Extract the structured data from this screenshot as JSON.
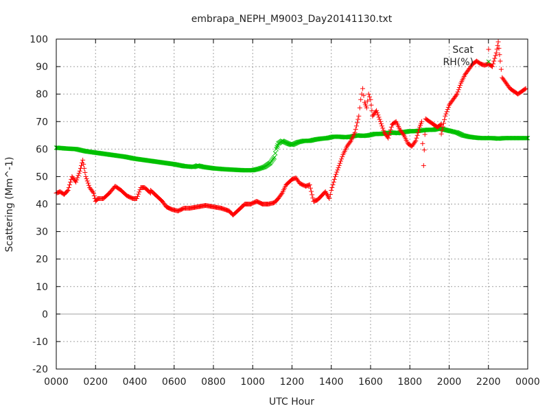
{
  "chart_data": {
    "type": "scatter",
    "title": "embrapa_NEPH_M9003_Day20141130.txt",
    "xlabel": "UTC Hour",
    "ylabel": "Scattering (Mm^-1)",
    "xlim": [
      0,
      24
    ],
    "ylim": [
      -20,
      100
    ],
    "x_tick_values": [
      0,
      2,
      4,
      6,
      8,
      10,
      12,
      14,
      16,
      18,
      20,
      22,
      24
    ],
    "x_tick_labels": [
      "0000",
      "0200",
      "0400",
      "0600",
      "0800",
      "1000",
      "1200",
      "1400",
      "1600",
      "1800",
      "2000",
      "2200",
      "0000"
    ],
    "y_tick_values": [
      -20,
      -10,
      0,
      10,
      20,
      30,
      40,
      50,
      60,
      70,
      80,
      90,
      100
    ],
    "y_tick_labels": [
      "-20",
      "-10",
      "0",
      "10",
      "20",
      "30",
      "40",
      "50",
      "60",
      "70",
      "80",
      "90",
      "100"
    ],
    "grid": true,
    "legend_position": "top-right",
    "series": [
      {
        "name": "Scat",
        "color": "#ff0000",
        "marker": "plus",
        "points": [
          [
            0.0,
            44
          ],
          [
            0.2,
            44.5
          ],
          [
            0.4,
            43.5
          ],
          [
            0.6,
            45
          ],
          [
            0.8,
            50
          ],
          [
            1.0,
            48
          ],
          [
            1.2,
            52
          ],
          [
            1.35,
            56
          ],
          [
            1.5,
            50
          ],
          [
            1.7,
            46
          ],
          [
            1.9,
            44
          ],
          [
            2.1,
            42
          ],
          [
            2.4,
            42
          ],
          [
            2.7,
            44
          ],
          [
            3.0,
            46.5
          ],
          [
            3.3,
            45
          ],
          [
            3.6,
            43
          ],
          [
            3.9,
            42
          ],
          [
            4.1,
            42
          ],
          [
            4.3,
            46
          ],
          [
            4.5,
            46
          ],
          [
            4.8,
            44
          ],
          [
            5.1,
            43
          ],
          [
            5.4,
            41
          ],
          [
            5.6,
            39
          ],
          [
            5.9,
            38
          ],
          [
            6.2,
            37.5
          ],
          [
            6.5,
            38.5
          ],
          [
            6.8,
            38.5
          ],
          [
            7.2,
            39
          ],
          [
            7.6,
            39.5
          ],
          [
            8.0,
            39
          ],
          [
            8.4,
            38.5
          ],
          [
            8.8,
            37.5
          ],
          [
            9.0,
            36
          ],
          [
            9.3,
            38
          ],
          [
            9.6,
            40
          ],
          [
            9.9,
            40
          ],
          [
            10.2,
            41
          ],
          [
            10.5,
            40
          ],
          [
            10.8,
            40
          ],
          [
            11.1,
            40.5
          ],
          [
            11.3,
            42
          ],
          [
            11.5,
            44
          ],
          [
            11.7,
            47
          ],
          [
            12.0,
            49
          ],
          [
            12.2,
            49.5
          ],
          [
            12.4,
            47.5
          ],
          [
            12.7,
            46.5
          ],
          [
            12.9,
            47
          ],
          [
            13.1,
            41
          ],
          [
            13.3,
            41.5
          ],
          [
            13.5,
            43
          ],
          [
            13.7,
            44.5
          ],
          [
            13.9,
            42
          ],
          [
            14.0,
            45
          ],
          [
            14.2,
            50
          ],
          [
            14.4,
            54
          ],
          [
            14.6,
            58
          ],
          [
            14.8,
            61
          ],
          [
            15.0,
            63
          ],
          [
            15.2,
            66
          ],
          [
            15.4,
            72
          ],
          [
            15.5,
            78
          ],
          [
            15.6,
            82
          ],
          [
            15.7,
            77
          ],
          [
            15.8,
            75
          ],
          [
            15.9,
            80
          ],
          [
            16.0,
            78
          ],
          [
            16.1,
            72
          ],
          [
            16.3,
            74
          ],
          [
            16.5,
            70
          ],
          [
            16.7,
            66
          ],
          [
            16.9,
            64
          ],
          [
            17.1,
            69
          ],
          [
            17.3,
            70
          ],
          [
            17.5,
            67
          ],
          [
            17.7,
            65
          ],
          [
            17.9,
            62
          ],
          [
            18.1,
            61
          ],
          [
            18.3,
            63
          ],
          [
            18.5,
            68
          ],
          [
            18.6,
            70
          ],
          [
            18.8,
            71
          ],
          [
            19.0,
            70
          ],
          [
            19.2,
            69
          ],
          [
            19.4,
            68
          ],
          [
            19.6,
            69
          ],
          [
            19.8,
            72
          ],
          [
            20.0,
            76
          ],
          [
            20.2,
            78
          ],
          [
            20.4,
            80
          ],
          [
            20.6,
            84
          ],
          [
            20.8,
            87
          ],
          [
            21.0,
            89
          ],
          [
            21.2,
            91
          ],
          [
            21.4,
            92
          ],
          [
            21.6,
            91
          ],
          [
            21.8,
            90.5
          ],
          [
            22.0,
            91
          ],
          [
            22.2,
            90
          ],
          [
            22.4,
            95
          ],
          [
            22.5,
            99
          ],
          [
            22.6,
            92
          ],
          [
            22.7,
            86
          ],
          [
            22.9,
            84
          ],
          [
            23.1,
            82
          ],
          [
            23.3,
            81
          ],
          [
            23.5,
            80
          ],
          [
            23.7,
            81
          ],
          [
            23.9,
            82
          ],
          [
            18.7,
            54
          ],
          [
            19.6,
            65.5
          ],
          [
            2.0,
            41
          ],
          [
            4.8,
            45
          ]
        ]
      },
      {
        "name": "RH(%)",
        "color": "#00c000",
        "marker": "x",
        "points": [
          [
            0.0,
            60.5
          ],
          [
            0.5,
            60.2
          ],
          [
            1.0,
            60
          ],
          [
            1.5,
            59.2
          ],
          [
            2.0,
            58.7
          ],
          [
            2.5,
            58.2
          ],
          [
            3.0,
            57.7
          ],
          [
            3.5,
            57.2
          ],
          [
            4.0,
            56.5
          ],
          [
            4.5,
            56
          ],
          [
            5.0,
            55.5
          ],
          [
            5.5,
            55
          ],
          [
            6.0,
            54.5
          ],
          [
            6.5,
            53.8
          ],
          [
            7.0,
            53.5
          ],
          [
            7.2,
            54
          ],
          [
            7.5,
            53.5
          ],
          [
            8.0,
            53
          ],
          [
            8.5,
            52.7
          ],
          [
            9.0,
            52.5
          ],
          [
            9.5,
            52.3
          ],
          [
            10.0,
            52.3
          ],
          [
            10.3,
            52.8
          ],
          [
            10.6,
            53.5
          ],
          [
            10.9,
            55
          ],
          [
            11.1,
            57
          ],
          [
            11.2,
            60
          ],
          [
            11.3,
            62
          ],
          [
            11.5,
            63
          ],
          [
            11.8,
            62
          ],
          [
            12.0,
            61.5
          ],
          [
            12.3,
            62.5
          ],
          [
            12.6,
            63
          ],
          [
            12.9,
            63
          ],
          [
            13.2,
            63.5
          ],
          [
            13.5,
            63.8
          ],
          [
            13.8,
            64
          ],
          [
            14.1,
            64.5
          ],
          [
            14.4,
            64.5
          ],
          [
            14.7,
            64.3
          ],
          [
            15.0,
            64.5
          ],
          [
            15.3,
            65
          ],
          [
            15.6,
            64.8
          ],
          [
            15.9,
            65
          ],
          [
            16.2,
            65.5
          ],
          [
            16.5,
            65.5
          ],
          [
            16.8,
            65.8
          ],
          [
            17.1,
            66
          ],
          [
            17.4,
            65.8
          ],
          [
            17.7,
            66.2
          ],
          [
            18.0,
            66.5
          ],
          [
            18.3,
            66.5
          ],
          [
            18.6,
            66.8
          ],
          [
            18.9,
            67
          ],
          [
            19.2,
            67
          ],
          [
            19.5,
            67.5
          ],
          [
            19.8,
            67
          ],
          [
            20.1,
            66.5
          ],
          [
            20.4,
            66
          ],
          [
            20.7,
            65
          ],
          [
            21.0,
            64.5
          ],
          [
            21.3,
            64.2
          ],
          [
            21.6,
            64
          ],
          [
            21.9,
            64
          ],
          [
            22.2,
            64
          ],
          [
            22.5,
            63.8
          ],
          [
            22.8,
            64
          ],
          [
            23.1,
            64
          ],
          [
            23.4,
            64
          ],
          [
            23.7,
            64
          ],
          [
            24.0,
            64
          ]
        ]
      }
    ]
  }
}
